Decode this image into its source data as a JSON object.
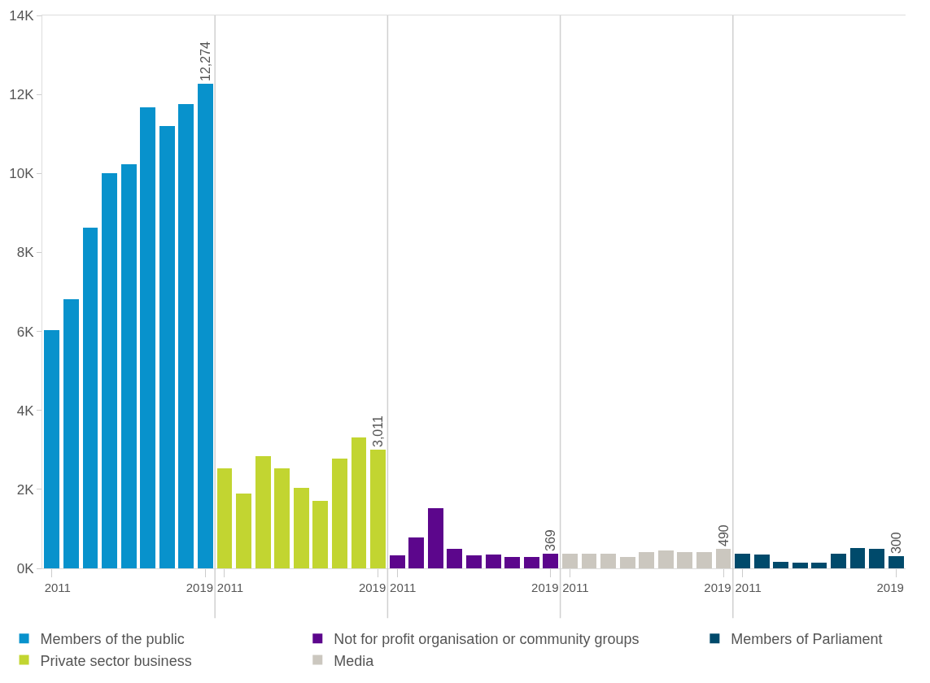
{
  "chart_data": {
    "type": "bar",
    "categories": [
      "2011",
      null,
      null,
      null,
      null,
      null,
      null,
      null,
      "2019",
      "2011",
      null,
      null,
      null,
      null,
      null,
      null,
      null,
      "2019",
      "2011",
      null,
      null,
      null,
      null,
      null,
      null,
      null,
      "2019",
      "2011",
      null,
      null,
      null,
      null,
      null,
      null,
      null,
      "2019",
      "2011",
      null,
      null,
      null,
      null,
      null,
      null,
      null,
      "2019"
    ],
    "series": [
      {
        "name": "Members of the public",
        "color": "#0892cc",
        "values": [
          6030,
          6810,
          8630,
          10000,
          10240,
          11670,
          11210,
          11750,
          12274,
          null,
          null,
          null,
          null,
          null,
          null,
          null,
          null,
          null,
          null,
          null,
          null,
          null,
          null,
          null,
          null,
          null,
          null,
          null,
          null,
          null,
          null,
          null,
          null,
          null,
          null,
          null,
          null,
          null,
          null,
          null,
          null,
          null,
          null,
          null,
          null
        ],
        "value_labels": [
          null,
          null,
          null,
          null,
          null,
          null,
          null,
          null,
          "12,274",
          null,
          null,
          null,
          null,
          null,
          null,
          null,
          null,
          null,
          null,
          null,
          null,
          null,
          null,
          null,
          null,
          null,
          null,
          null,
          null,
          null,
          null,
          null,
          null,
          null,
          null,
          null,
          null,
          null,
          null,
          null,
          null,
          null,
          null,
          null,
          null
        ]
      },
      {
        "name": "Private sector business",
        "color": "#c2d531",
        "values": [
          null,
          null,
          null,
          null,
          null,
          null,
          null,
          null,
          null,
          2540,
          1890,
          2850,
          2540,
          2040,
          1710,
          2770,
          3320,
          3011,
          null,
          null,
          null,
          null,
          null,
          null,
          null,
          null,
          null,
          null,
          null,
          null,
          null,
          null,
          null,
          null,
          null,
          null,
          null,
          null,
          null,
          null,
          null,
          null,
          null,
          null,
          null
        ],
        "value_labels": [
          null,
          null,
          null,
          null,
          null,
          null,
          null,
          null,
          null,
          null,
          null,
          null,
          null,
          null,
          null,
          null,
          null,
          "3,011",
          null,
          null,
          null,
          null,
          null,
          null,
          null,
          null,
          null,
          null,
          null,
          null,
          null,
          null,
          null,
          null,
          null,
          null,
          null,
          null,
          null,
          null,
          null,
          null,
          null,
          null,
          null
        ]
      },
      {
        "name": "Not for profit organisation or community groups",
        "color": "#5c068c",
        "values": [
          null,
          null,
          null,
          null,
          null,
          null,
          null,
          null,
          null,
          null,
          null,
          null,
          null,
          null,
          null,
          null,
          null,
          null,
          320,
          790,
          1520,
          500,
          320,
          340,
          280,
          280,
          369,
          null,
          null,
          null,
          null,
          null,
          null,
          null,
          null,
          null,
          null,
          null,
          null,
          null,
          null,
          null,
          null,
          null,
          null
        ],
        "value_labels": [
          null,
          null,
          null,
          null,
          null,
          null,
          null,
          null,
          null,
          null,
          null,
          null,
          null,
          null,
          null,
          null,
          null,
          null,
          null,
          null,
          null,
          null,
          null,
          null,
          null,
          null,
          "369",
          null,
          null,
          null,
          null,
          null,
          null,
          null,
          null,
          null,
          null,
          null,
          null,
          null,
          null,
          null,
          null,
          null,
          null
        ]
      },
      {
        "name": "Media",
        "color": "#cbc7bf",
        "values": [
          null,
          null,
          null,
          null,
          null,
          null,
          null,
          null,
          null,
          null,
          null,
          null,
          null,
          null,
          null,
          null,
          null,
          null,
          null,
          null,
          null,
          null,
          null,
          null,
          null,
          null,
          null,
          380,
          380,
          380,
          280,
          420,
          460,
          420,
          420,
          490,
          null,
          null,
          null,
          null,
          null,
          null,
          null,
          null,
          null
        ],
        "value_labels": [
          null,
          null,
          null,
          null,
          null,
          null,
          null,
          null,
          null,
          null,
          null,
          null,
          null,
          null,
          null,
          null,
          null,
          null,
          null,
          null,
          null,
          null,
          null,
          null,
          null,
          null,
          null,
          null,
          null,
          null,
          null,
          null,
          null,
          null,
          null,
          "490",
          null,
          null,
          null,
          null,
          null,
          null,
          null,
          null,
          null
        ]
      },
      {
        "name": "Members of Parliament",
        "color": "#004a6b",
        "values": [
          null,
          null,
          null,
          null,
          null,
          null,
          null,
          null,
          null,
          null,
          null,
          null,
          null,
          null,
          null,
          null,
          null,
          null,
          null,
          null,
          null,
          null,
          null,
          null,
          null,
          null,
          null,
          null,
          null,
          null,
          null,
          null,
          null,
          null,
          null,
          null,
          380,
          340,
          160,
          140,
          140,
          380,
          520,
          500,
          300
        ],
        "value_labels": [
          null,
          null,
          null,
          null,
          null,
          null,
          null,
          null,
          null,
          null,
          null,
          null,
          null,
          null,
          null,
          null,
          null,
          null,
          null,
          null,
          null,
          null,
          null,
          null,
          null,
          null,
          null,
          null,
          null,
          null,
          null,
          null,
          null,
          null,
          null,
          null,
          null,
          null,
          null,
          null,
          null,
          null,
          null,
          null,
          "300"
        ]
      }
    ],
    "ylim": [
      0,
      14000
    ],
    "yticks": [
      {
        "value": 0,
        "label": "0K"
      },
      {
        "value": 2000,
        "label": "2K"
      },
      {
        "value": 4000,
        "label": "4K"
      },
      {
        "value": 6000,
        "label": "6K"
      },
      {
        "value": 8000,
        "label": "8K"
      },
      {
        "value": 10000,
        "label": "10K"
      },
      {
        "value": 12000,
        "label": "12K"
      },
      {
        "value": 14000,
        "label": "14K"
      }
    ],
    "legend": "bottom"
  }
}
